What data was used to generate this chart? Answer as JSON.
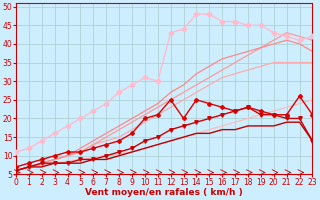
{
  "title": "",
  "xlabel": "Vent moyen/en rafales ( km/h )",
  "bg_color": "#cceeff",
  "grid_color": "#aacccc",
  "xlim": [
    0,
    23
  ],
  "ylim": [
    5,
    51
  ],
  "yticks": [
    5,
    10,
    15,
    20,
    25,
    30,
    35,
    40,
    45,
    50
  ],
  "xticks": [
    0,
    1,
    2,
    3,
    4,
    5,
    6,
    7,
    8,
    9,
    10,
    11,
    12,
    13,
    14,
    15,
    16,
    17,
    18,
    19,
    20,
    21,
    22,
    23
  ],
  "series": [
    {
      "x": [
        0,
        1,
        2,
        3,
        4,
        5,
        6,
        7,
        8,
        9,
        10,
        11,
        12,
        13,
        14,
        15,
        16,
        17,
        18,
        19,
        20,
        21,
        22,
        23
      ],
      "y": [
        6,
        7,
        7.5,
        8,
        8.5,
        9,
        9.5,
        10,
        10.5,
        11,
        12,
        13,
        14,
        15,
        16,
        17,
        18,
        19,
        20,
        21,
        22,
        23,
        24,
        25
      ],
      "color": "#ffbbbb",
      "lw": 0.9,
      "marker": null,
      "zorder": 2
    },
    {
      "x": [
        0,
        1,
        2,
        3,
        4,
        5,
        6,
        7,
        8,
        9,
        10,
        11,
        12,
        13,
        14,
        15,
        16,
        17,
        18,
        19,
        20,
        21,
        22,
        23
      ],
      "y": [
        6,
        7,
        8,
        9,
        10,
        11,
        13,
        14,
        15,
        17,
        19,
        21,
        23,
        25,
        27,
        29,
        31,
        32,
        33,
        34,
        35,
        35,
        35,
        35
      ],
      "color": "#ffaaaa",
      "lw": 0.9,
      "marker": null,
      "zorder": 2
    },
    {
      "x": [
        0,
        1,
        2,
        3,
        4,
        5,
        6,
        7,
        8,
        9,
        10,
        11,
        12,
        13,
        14,
        15,
        16,
        17,
        18,
        19,
        20,
        21,
        22,
        23
      ],
      "y": [
        6,
        7,
        8,
        9,
        10,
        11,
        13,
        15,
        17,
        19,
        21,
        23,
        25,
        27,
        29,
        31,
        33,
        35,
        37,
        39,
        41,
        43,
        42,
        41
      ],
      "color": "#ff9999",
      "lw": 0.9,
      "marker": null,
      "zorder": 2
    },
    {
      "x": [
        0,
        1,
        2,
        3,
        4,
        5,
        6,
        7,
        8,
        9,
        10,
        11,
        12,
        13,
        14,
        15,
        16,
        17,
        18,
        19,
        20,
        21,
        22,
        23
      ],
      "y": [
        6,
        7,
        8,
        9,
        10,
        12,
        14,
        16,
        18,
        20,
        22,
        24,
        27,
        29,
        32,
        34,
        36,
        37,
        38,
        39,
        40,
        41,
        40,
        38
      ],
      "color": "#ff8888",
      "lw": 0.9,
      "marker": null,
      "zorder": 2
    },
    {
      "x": [
        0,
        1,
        2,
        3,
        4,
        5,
        6,
        7,
        8,
        9,
        10,
        11,
        12,
        13,
        14,
        15,
        16,
        17,
        18,
        19,
        20,
        21,
        22,
        23
      ],
      "y": [
        11,
        12,
        14,
        16,
        18,
        20,
        22,
        24,
        27,
        29,
        31,
        30,
        43,
        44,
        48,
        48,
        46,
        46,
        45,
        45,
        43,
        42,
        41,
        42
      ],
      "color": "#ffbbcc",
      "lw": 1.0,
      "marker": "D",
      "ms": 2.5,
      "zorder": 3
    },
    {
      "x": [
        0,
        1,
        2,
        3,
        4,
        5,
        6,
        7,
        8,
        9,
        10,
        11,
        12,
        13,
        14,
        15,
        16,
        17,
        18,
        19,
        20,
        21,
        22,
        23
      ],
      "y": [
        7,
        8,
        9,
        10,
        11,
        11,
        12,
        13,
        14,
        16,
        20,
        21,
        25,
        20,
        25,
        24,
        23,
        22,
        23,
        22,
        21,
        21,
        26,
        21
      ],
      "color": "#dd0000",
      "lw": 1.0,
      "marker": "P",
      "ms": 2.5,
      "zorder": 4
    },
    {
      "x": [
        0,
        1,
        2,
        3,
        4,
        5,
        6,
        7,
        8,
        9,
        10,
        11,
        12,
        13,
        14,
        15,
        16,
        17,
        18,
        19,
        20,
        21,
        22,
        23
      ],
      "y": [
        6,
        7,
        8,
        8,
        8,
        9,
        9,
        10,
        11,
        12,
        14,
        15,
        17,
        18,
        19,
        20,
        21,
        22,
        23,
        21,
        21,
        20,
        20,
        14
      ],
      "color": "#cc0000",
      "lw": 1.0,
      "marker": "v",
      "ms": 2.5,
      "zorder": 4
    },
    {
      "x": [
        0,
        1,
        2,
        3,
        4,
        5,
        6,
        7,
        8,
        9,
        10,
        11,
        12,
        13,
        14,
        15,
        16,
        17,
        18,
        19,
        20,
        21,
        22,
        23
      ],
      "y": [
        6,
        7,
        7,
        8,
        8,
        8,
        9,
        9,
        10,
        11,
        12,
        13,
        14,
        15,
        16,
        16,
        17,
        17,
        18,
        18,
        18,
        19,
        19,
        14
      ],
      "color": "#bb0000",
      "lw": 1.0,
      "marker": null,
      "zorder": 3
    }
  ],
  "xlabel_color": "#cc0000",
  "tick_color": "#cc0000",
  "label_fontsize": 6.5,
  "tick_fontsize": 5.5
}
